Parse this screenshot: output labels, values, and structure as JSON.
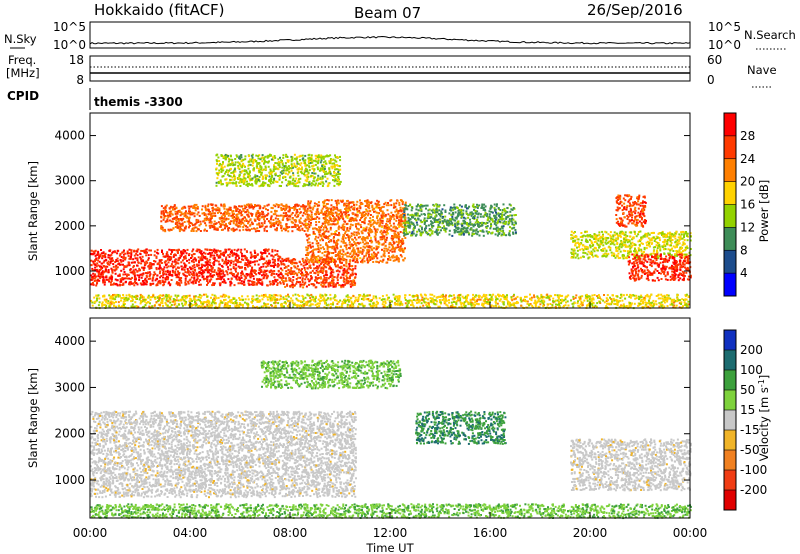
{
  "header": {
    "radar": "Hokkaido (fitACF)",
    "beam": "Beam 07",
    "date": "26/Sep/2016"
  },
  "noise_panel": {
    "left_label": "N.Sky",
    "right_label": "N.Search",
    "left_ticks": [
      "10^5",
      "10^0"
    ],
    "right_ticks": [
      "10^5",
      "10^0"
    ]
  },
  "freq_panel": {
    "left_label_1": "Freq.",
    "left_label_2": "[MHz]",
    "left_ticks": [
      "18",
      "8"
    ],
    "right_label": "Nave",
    "right_ticks": [
      "60",
      "0"
    ]
  },
  "cpid_panel": {
    "label": "CPID",
    "value": "themis -3300"
  },
  "chart_data": [
    {
      "type": "heatmap",
      "panel": "power",
      "ylabel": "Slant Range [km]",
      "ylim": [
        180,
        4500
      ],
      "yticks": [
        1000,
        2000,
        3000,
        4000
      ],
      "xlim_hours": [
        0,
        24
      ],
      "colorbar_label": "Power [dB]",
      "colorbar_ticks": [
        "28",
        "24",
        "20",
        "16",
        "12",
        "8",
        "4"
      ],
      "colorbar_colors": [
        "#ff0000",
        "#ff3a00",
        "#ff7f00",
        "#ffd200",
        "#93d200",
        "#3e8d58",
        "#1c4c8c",
        "#0000ff"
      ],
      "regions": [
        {
          "t": [
            0.0,
            7.6
          ],
          "r": [
            700,
            1500
          ],
          "level": 0.92
        },
        {
          "t": [
            7.6,
            10.6
          ],
          "r": [
            650,
            1300
          ],
          "level": 0.85
        },
        {
          "t": [
            2.8,
            8.6
          ],
          "r": [
            1900,
            2500
          ],
          "level": 0.8
        },
        {
          "t": [
            8.6,
            12.6
          ],
          "r": [
            1200,
            2600
          ],
          "level": 0.75
        },
        {
          "t": [
            5.0,
            10.0
          ],
          "r": [
            2900,
            3600
          ],
          "level": 0.45
        },
        {
          "t": [
            12.5,
            17.0
          ],
          "r": [
            1800,
            2500
          ],
          "level": 0.32
        },
        {
          "t": [
            19.2,
            24.0
          ],
          "r": [
            1300,
            1900
          ],
          "level": 0.5
        },
        {
          "t": [
            21.5,
            24.0
          ],
          "r": [
            800,
            1400
          ],
          "level": 0.9
        },
        {
          "t": [
            21.0,
            22.2
          ],
          "r": [
            2000,
            2700
          ],
          "level": 0.85
        },
        {
          "t": [
            0.0,
            24.0
          ],
          "r": [
            200,
            500
          ],
          "level": 0.55
        }
      ]
    },
    {
      "type": "heatmap",
      "panel": "velocity",
      "ylabel": "Slant Range [km]",
      "ylim": [
        180,
        4500
      ],
      "yticks": [
        1000,
        2000,
        3000,
        4000
      ],
      "xlim_hours": [
        0,
        24
      ],
      "xlabel": "Time UT",
      "xticks": [
        "00:00",
        "04:00",
        "08:00",
        "12:00",
        "16:00",
        "20:00",
        "00:00"
      ],
      "colorbar_label": "Velocity [m s^-1]",
      "colorbar_ticks": [
        "200",
        "100",
        "50",
        "15",
        "-15",
        "-50",
        "-100",
        "-200"
      ],
      "colorbar_colors": [
        "#1030c0",
        "#1c6c70",
        "#3ca03c",
        "#7ed23c",
        "#c8c8c8",
        "#f0b428",
        "#f08020",
        "#f03c14",
        "#e00000"
      ],
      "regions": [
        {
          "t": [
            0.0,
            10.6
          ],
          "r": [
            650,
            2500
          ],
          "class": "ground_scatter"
        },
        {
          "t": [
            19.2,
            24.0
          ],
          "r": [
            800,
            1900
          ],
          "class": "ground_scatter"
        },
        {
          "t": [
            6.8,
            12.4
          ],
          "r": [
            3000,
            3600
          ],
          "class": "positive_50"
        },
        {
          "t": [
            13.0,
            16.6
          ],
          "r": [
            1800,
            2500
          ],
          "class": "positive_100"
        },
        {
          "t": [
            0.0,
            24.0
          ],
          "r": [
            200,
            500
          ],
          "class": "positive_50"
        }
      ]
    }
  ]
}
